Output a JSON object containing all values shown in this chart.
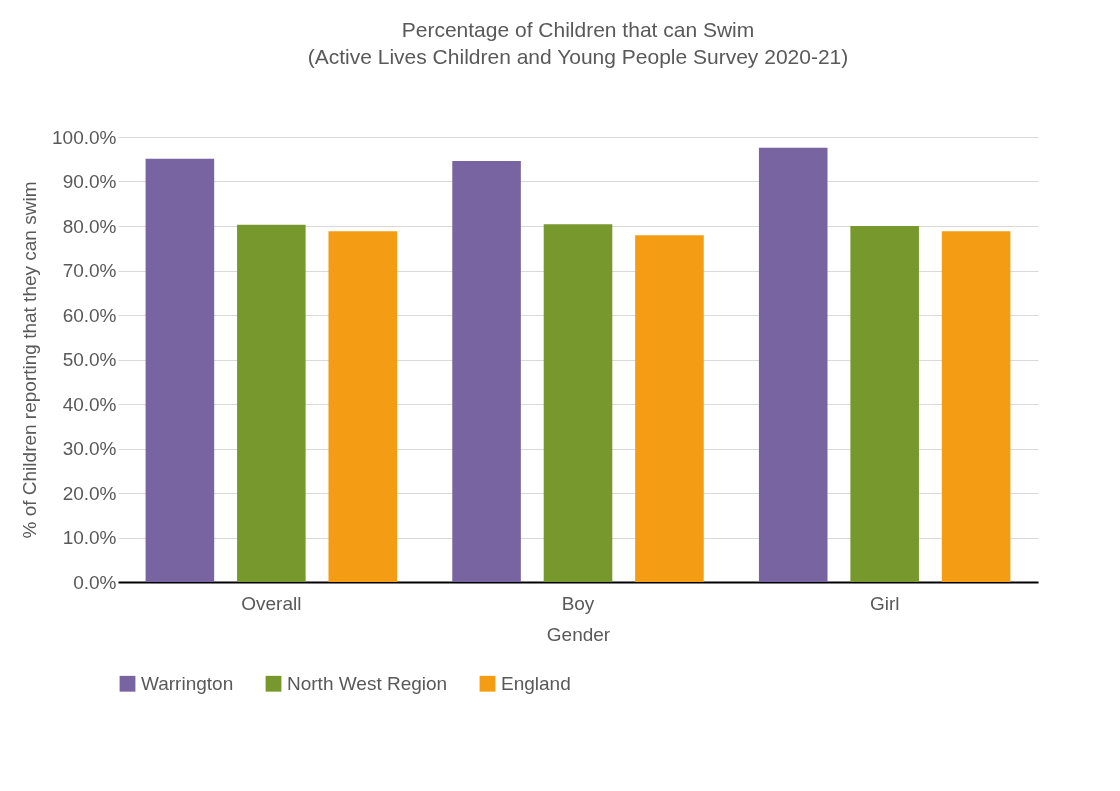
{
  "chart_data": {
    "type": "bar",
    "title": "Percentage of Children that can Swim",
    "subtitle": "(Active Lives Children and Young People Survey 2020-21)",
    "xlabel": "Gender",
    "ylabel": "% of Children reporting that they can swim",
    "categories": [
      "Overall",
      "Boy",
      "Girl"
    ],
    "series": [
      {
        "name": "Warrington",
        "color": "#7864a0",
        "values": [
          95.1,
          94.6,
          97.6
        ]
      },
      {
        "name": "North West Region",
        "color": "#77982c",
        "values": [
          80.3,
          80.4,
          80.0
        ]
      },
      {
        "name": "England",
        "color": "#f39c14",
        "values": [
          78.8,
          77.9,
          78.8
        ]
      }
    ],
    "ylim": [
      0,
      100
    ],
    "yticks": [
      {
        "value": 0,
        "label": "0.0%"
      },
      {
        "value": 10,
        "label": "10.0%"
      },
      {
        "value": 20,
        "label": "20.0%"
      },
      {
        "value": 30,
        "label": "30.0%"
      },
      {
        "value": 40,
        "label": "40.0%"
      },
      {
        "value": 50,
        "label": "50.0%"
      },
      {
        "value": 60,
        "label": "60.0%"
      },
      {
        "value": 70,
        "label": "70.0%"
      },
      {
        "value": 80,
        "label": "80.0%"
      },
      {
        "value": 90,
        "label": "90.0%"
      },
      {
        "value": 100,
        "label": "100.0%"
      }
    ],
    "grid": "y",
    "legend": "bottom"
  }
}
